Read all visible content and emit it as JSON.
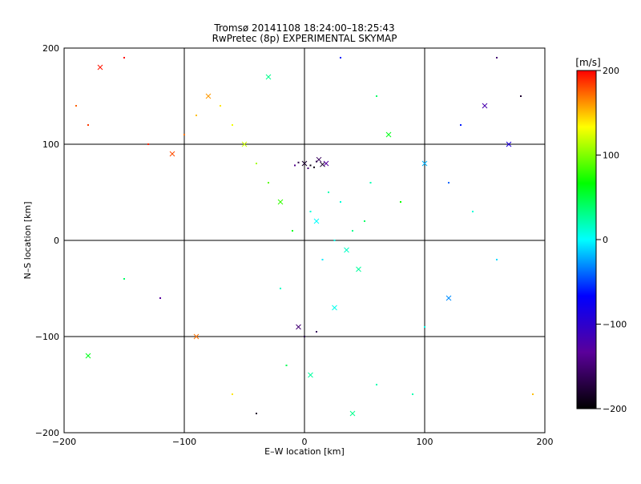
{
  "chart_data": {
    "type": "scatter",
    "title": "Tromsø 20141108 18:24:00–18:25:43",
    "subtitle": "RwPretec (8p) EXPERIMENTAL SKYMAP",
    "xlabel": "E–W location [km]",
    "ylabel": "N–S location [km]",
    "xlim": [
      -200,
      200
    ],
    "ylim": [
      -200,
      200
    ],
    "xticks": [
      -200,
      -100,
      0,
      100,
      200
    ],
    "yticks": [
      -200,
      -100,
      0,
      100,
      200
    ],
    "grid": true,
    "colorbar": {
      "label": "[m/s]",
      "range": [
        -200,
        200
      ],
      "ticks": [
        -200,
        -100,
        0,
        100,
        200
      ],
      "colormap": [
        "#000000",
        "#5a009a",
        "#0000ff",
        "#00ffff",
        "#00ff00",
        "#ffff00",
        "#ff0000"
      ],
      "placement": "right"
    },
    "markers": [
      "dot",
      "cross"
    ],
    "series": [
      {
        "values": [
          [
            0,
            80,
            -180
          ],
          [
            5,
            78,
            -190
          ],
          [
            10,
            82,
            -175
          ],
          [
            15,
            79,
            -185
          ],
          [
            -5,
            81,
            -170
          ],
          [
            8,
            76,
            -195
          ],
          [
            12,
            84,
            -160
          ],
          [
            3,
            75,
            -150
          ],
          [
            -8,
            78,
            -140
          ],
          [
            18,
            80,
            -130
          ],
          [
            20,
            50,
            20
          ],
          [
            30,
            40,
            10
          ],
          [
            10,
            20,
            0
          ],
          [
            40,
            10,
            30
          ],
          [
            25,
            0,
            5
          ],
          [
            35,
            -10,
            15
          ],
          [
            15,
            -20,
            -5
          ],
          [
            50,
            20,
            40
          ],
          [
            45,
            -30,
            25
          ],
          [
            5,
            30,
            10
          ],
          [
            -10,
            10,
            60
          ],
          [
            -20,
            40,
            80
          ],
          [
            -30,
            60,
            90
          ],
          [
            -40,
            80,
            110
          ],
          [
            -50,
            100,
            120
          ],
          [
            -60,
            120,
            130
          ],
          [
            -70,
            140,
            140
          ],
          [
            -80,
            150,
            160
          ],
          [
            -90,
            130,
            150
          ],
          [
            -100,
            110,
            170
          ],
          [
            -110,
            90,
            180
          ],
          [
            -130,
            100,
            190
          ],
          [
            -150,
            190,
            200
          ],
          [
            -170,
            180,
            195
          ],
          [
            -180,
            120,
            185
          ],
          [
            -190,
            140,
            175
          ],
          [
            100,
            80,
            -20
          ],
          [
            120,
            60,
            -40
          ],
          [
            130,
            120,
            -60
          ],
          [
            150,
            140,
            -120
          ],
          [
            160,
            190,
            -150
          ],
          [
            180,
            150,
            -180
          ],
          [
            170,
            100,
            -90
          ],
          [
            140,
            30,
            10
          ],
          [
            160,
            -20,
            -10
          ],
          [
            120,
            -60,
            -30
          ],
          [
            100,
            -90,
            5
          ],
          [
            60,
            -150,
            20
          ],
          [
            40,
            -180,
            30
          ],
          [
            0,
            -100,
            -170
          ],
          [
            10,
            -95,
            -160
          ],
          [
            -5,
            -90,
            -150
          ],
          [
            -40,
            -180,
            -180
          ],
          [
            -60,
            -160,
            140
          ],
          [
            -90,
            -100,
            170
          ],
          [
            -120,
            -60,
            -130
          ],
          [
            -150,
            -40,
            40
          ],
          [
            -180,
            -120,
            60
          ],
          [
            90,
            -160,
            20
          ],
          [
            190,
            -160,
            150
          ],
          [
            70,
            110,
            60
          ],
          [
            60,
            150,
            40
          ],
          [
            30,
            190,
            -60
          ],
          [
            -30,
            170,
            30
          ],
          [
            80,
            40,
            70
          ],
          [
            -20,
            -50,
            15
          ],
          [
            25,
            -70,
            5
          ],
          [
            55,
            60,
            20
          ],
          [
            -15,
            -130,
            45
          ],
          [
            5,
            -140,
            25
          ]
        ]
      }
    ]
  }
}
